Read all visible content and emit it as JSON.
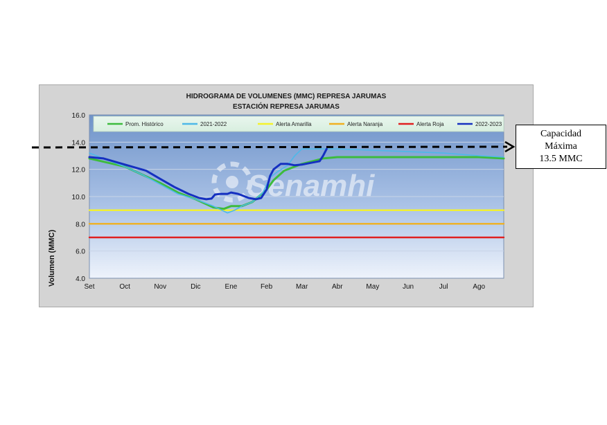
{
  "capacity_note": {
    "line1": "Capacidad",
    "line2": "Máxima",
    "line3": "13.5 MMC"
  },
  "chart_data": {
    "type": "line",
    "title": "HIDROGRAMA DE VOLUMENES (MMC) REPRESA JARUMAS",
    "subtitle": "ESTACIÓN REPRESA JARUMAS",
    "xlabel": "",
    "ylabel": "Volumen (MMC)",
    "ylim": [
      4.0,
      16.0
    ],
    "yticks": [
      "4.0",
      "6.0",
      "8.0",
      "10.0",
      "12.0",
      "14.0",
      "16.0"
    ],
    "months": [
      "Set",
      "Oct",
      "Nov",
      "Dic",
      "Ene",
      "Feb",
      "Mar",
      "Abr",
      "May",
      "Jun",
      "Jul",
      "Ago"
    ],
    "x_unit": "months since start of September",
    "grid": true,
    "legend_position": "top",
    "watermark": "Senamhi",
    "series": [
      {
        "name": "Prom. Histórico",
        "color": "#3dbb3d",
        "x": [
          0,
          0.5,
          1,
          1.5,
          2,
          2.5,
          3,
          3.5,
          3.8,
          4,
          4.3,
          4.6,
          5,
          5.2,
          5.5,
          5.8,
          6,
          6.3,
          6.6,
          7,
          7.5,
          8,
          9,
          10,
          11,
          11.7
        ],
        "y": [
          12.8,
          12.5,
          12.2,
          11.6,
          11.0,
          10.3,
          9.8,
          9.2,
          9.1,
          9.3,
          9.3,
          9.6,
          10.5,
          11.2,
          11.9,
          12.2,
          12.4,
          12.6,
          12.8,
          12.9,
          12.9,
          12.9,
          12.9,
          12.9,
          12.9,
          12.8
        ]
      },
      {
        "name": "2021-2022",
        "color": "#4db8e8",
        "x": [
          0,
          0.5,
          1,
          1.5,
          2,
          2.5,
          3,
          3.5,
          3.9,
          4.1,
          4.3,
          4.6,
          4.9,
          5.1,
          5.3,
          5.6,
          5.8,
          6.0,
          6.3,
          6.6,
          7,
          8,
          9,
          10,
          11,
          11.7
        ],
        "y": [
          13.2,
          12.7,
          12.2,
          11.6,
          10.9,
          10.2,
          9.8,
          9.3,
          8.8,
          9.0,
          9.3,
          9.6,
          10.3,
          11.4,
          11.8,
          12.3,
          13.0,
          13.5,
          13.5,
          13.5,
          13.5,
          13.4,
          13.3,
          13.2,
          13.0,
          12.9
        ]
      },
      {
        "name": "Alerta Amarilla",
        "color": "#f5f22a",
        "x": [
          0,
          11.7
        ],
        "y": [
          9.0,
          9.0
        ]
      },
      {
        "name": "Alerta Naranja",
        "color": "#f0b020",
        "x": [
          0,
          11.7
        ],
        "y": [
          8.0,
          8.0
        ]
      },
      {
        "name": "Alerta Roja",
        "color": "#e02020",
        "x": [
          0,
          11.7
        ],
        "y": [
          7.0,
          7.0
        ]
      },
      {
        "name": "2022-2023",
        "color": "#1530c0",
        "x": [
          0,
          0.4,
          0.8,
          1.2,
          1.6,
          2.0,
          2.4,
          2.8,
          3.1,
          3.3,
          3.45,
          3.55,
          3.7,
          3.9,
          4.0,
          4.2,
          4.5,
          4.7,
          4.85,
          5.0,
          5.1,
          5.2,
          5.4,
          5.6,
          5.8,
          6.0,
          6.3,
          6.5,
          6.6,
          6.7
        ],
        "y": [
          12.9,
          12.8,
          12.5,
          12.2,
          11.9,
          11.3,
          10.7,
          10.2,
          9.9,
          9.8,
          9.85,
          10.15,
          10.2,
          10.2,
          10.3,
          10.2,
          9.9,
          9.8,
          9.9,
          10.5,
          11.5,
          12.0,
          12.4,
          12.4,
          12.3,
          12.35,
          12.5,
          12.6,
          13.0,
          13.5
        ]
      }
    ]
  }
}
